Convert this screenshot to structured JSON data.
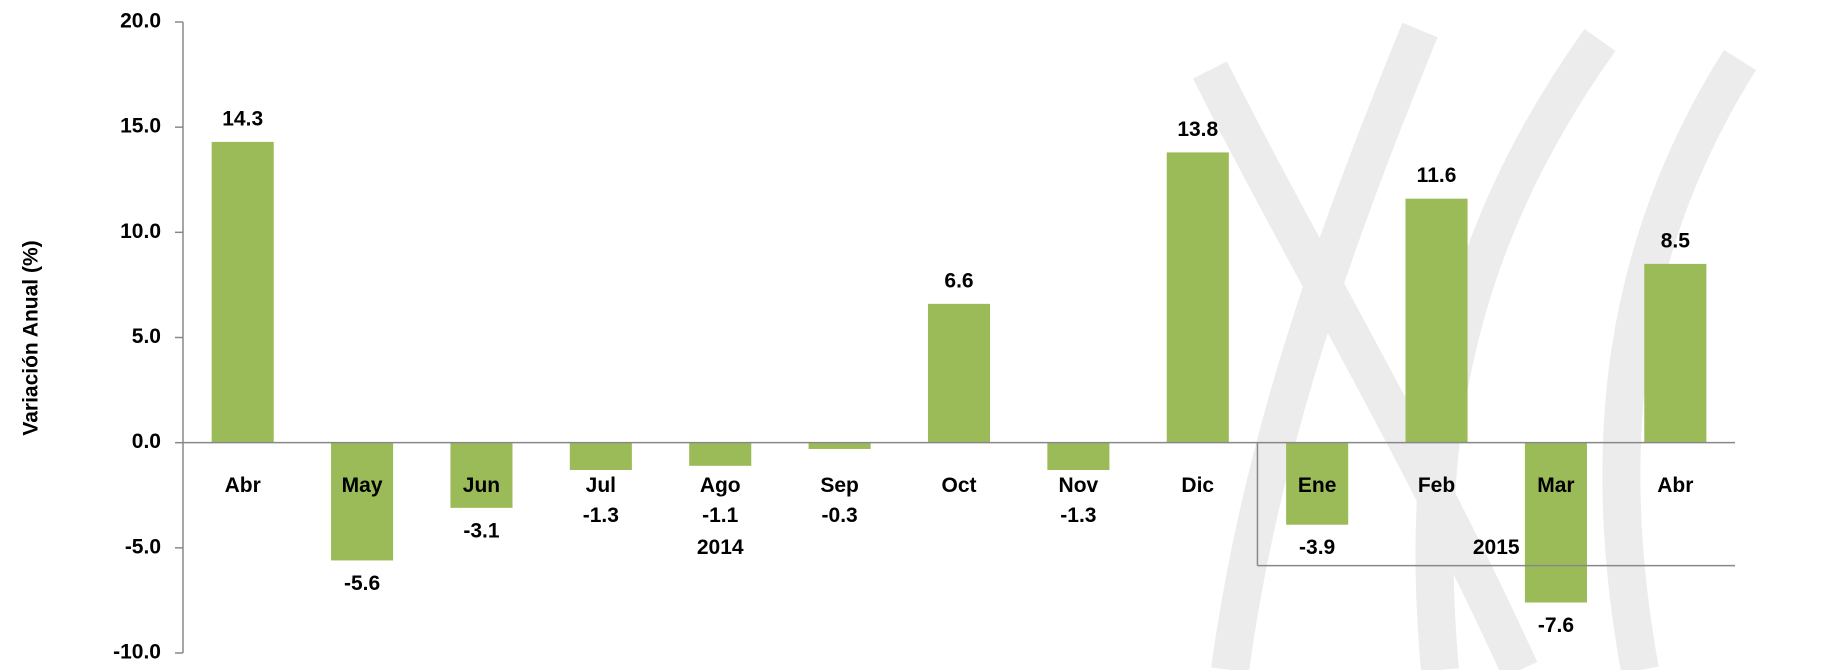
{
  "chart_data": {
    "type": "bar",
    "y_label": "Variación Anual (%)",
    "categories": [
      "Abr",
      "May",
      "Jun",
      "Jul",
      "Ago",
      "Sep",
      "Oct",
      "Nov",
      "Dic",
      "Ene",
      "Feb",
      "Mar",
      "Abr"
    ],
    "values": [
      14.3,
      -5.6,
      -3.1,
      -1.3,
      -1.1,
      -0.3,
      6.6,
      -1.3,
      13.8,
      -3.9,
      11.6,
      -7.6,
      8.5
    ],
    "year_labels": [
      "2014",
      "2015"
    ],
    "color": "#9bbb59",
    "ylim": [
      -10,
      20
    ],
    "yticks": [
      {
        "value": -10,
        "label": "-10.0"
      },
      {
        "value": -5,
        "label": "-5.0"
      },
      {
        "value": 0,
        "label": "0.0"
      },
      {
        "value": 5,
        "label": "5.0"
      },
      {
        "value": 10,
        "label": "10.0"
      },
      {
        "value": 15,
        "label": "15.0"
      },
      {
        "value": 20,
        "label": "20.0"
      }
    ],
    "grid": false
  }
}
